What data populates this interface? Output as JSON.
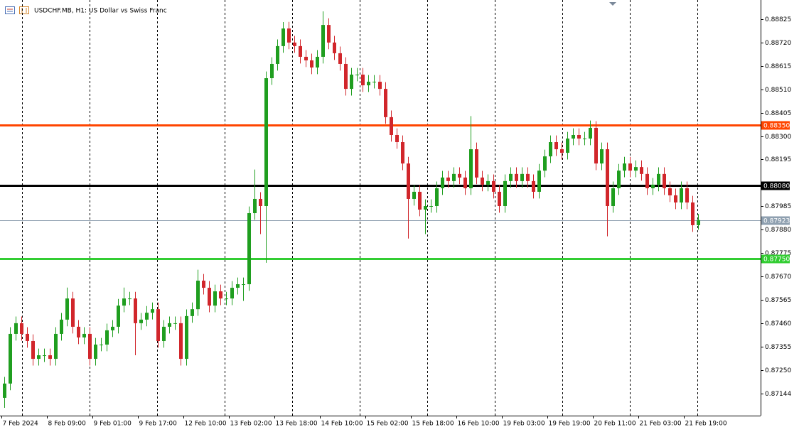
{
  "chart_data": {
    "type": "candlestick",
    "title": "USDCHF.MB, H1: US Dollar vs Swiss Franc",
    "grid": false,
    "up_color": "#1f9e1f",
    "down_color": "#d1262b",
    "xlim": [
      0,
      133.5
    ],
    "ylim": [
      0.87045,
      0.88911
    ],
    "xticks": [
      {
        "value": 0,
        "label": "7 Feb 2024"
      },
      {
        "value": 8,
        "label": "8 Feb 09:00"
      },
      {
        "value": 16,
        "label": "9 Feb 01:00"
      },
      {
        "value": 24,
        "label": "9 Feb 17:00"
      },
      {
        "value": 32,
        "label": "12 Feb 10:00"
      },
      {
        "value": 40,
        "label": "13 Feb 02:00"
      },
      {
        "value": 48,
        "label": "13 Feb 18:00"
      },
      {
        "value": 56,
        "label": "14 Feb 10:00"
      },
      {
        "value": 64,
        "label": "15 Feb 02:00"
      },
      {
        "value": 72,
        "label": "15 Feb 18:00"
      },
      {
        "value": 80,
        "label": "16 Feb 10:00"
      },
      {
        "value": 88,
        "label": "19 Feb 03:00"
      },
      {
        "value": 96,
        "label": "19 Feb 19:00"
      },
      {
        "value": 104,
        "label": "20 Feb 11:00"
      },
      {
        "value": 112,
        "label": "21 Feb 03:00"
      },
      {
        "value": 120,
        "label": "21 Feb 19:00"
      }
    ],
    "xgrid": [
      3.6,
      15.5,
      27.4,
      39.3,
      51.1,
      63,
      74.9,
      86.8,
      98.6,
      110.5,
      122.4
    ],
    "yticks": [
      0.88825,
      {
        "value": 0.8872,
        "label": "0.88720"
      },
      0.88615,
      {
        "value": 0.8851,
        "label": "0.88510"
      },
      0.88405,
      {
        "value": 0.883,
        "label": "0.88300"
      },
      0.88195,
      0.87985,
      {
        "value": 0.8788,
        "label": "0.87880"
      },
      0.87775,
      {
        "value": 0.8767,
        "label": "0.87670"
      },
      0.87565,
      {
        "value": 0.8746,
        "label": "0.87460"
      },
      0.87355,
      {
        "value": 0.8725,
        "label": "0.87250"
      },
      0.87144
    ],
    "levels": [
      {
        "value": 0.8835,
        "label": "0.88350",
        "color": "#ff4500"
      },
      {
        "value": 0.8808,
        "label": "0.88080",
        "color": "#000000"
      },
      {
        "value": 0.8775,
        "label": "0.87750",
        "color": "#32cd32"
      },
      {
        "value": 0.87923,
        "label": "0.87923",
        "color": "#8fa0b0"
      }
    ],
    "open": [
      0.87125,
      0.87189,
      0.87412,
      0.8746,
      0.87412,
      0.8738,
      0.873,
      0.87316,
      0.87316,
      0.873,
      0.87412,
      0.87476,
      0.87571,
      0.87444,
      0.87396,
      0.87412,
      0.873,
      0.87364,
      0.87364,
      0.87428,
      0.87444,
      0.87539,
      0.87571,
      0.87571,
      0.8746,
      0.87476,
      0.87507,
      0.87523,
      0.8738,
      0.87444,
      0.8746,
      0.8746,
      0.873,
      0.87492,
      0.87523,
      0.87651,
      0.87619,
      0.87539,
      0.87603,
      0.87571,
      0.87571,
      0.87619,
      0.87635,
      0.87635,
      0.87954,
      0.88018,
      0.87986,
      0.8856,
      0.88624,
      0.88704,
      0.88783,
      0.8872,
      0.88704,
      0.88656,
      0.8864,
      0.88608,
      0.88656,
      0.88799,
      0.8872,
      0.88672,
      0.88624,
      0.88512,
      0.88576,
      0.88576,
      0.88528,
      0.88544,
      0.88544,
      0.88512,
      0.88385,
      0.88305,
      0.88273,
      0.88177,
      0.88018,
      0.8805,
      0.8797,
      0.87986,
      0.87986,
      0.88066,
      0.88114,
      0.88098,
      0.8813,
      0.88114,
      0.88066,
      0.88241,
      0.88114,
      0.88082,
      0.88098,
      0.8805,
      0.87986,
      0.88098,
      0.8813,
      0.88098,
      0.8813,
      0.88098,
      0.8805,
      0.88145,
      0.88209,
      0.88273,
      0.88241,
      0.88225,
      0.88289,
      0.88305,
      0.88289,
      0.88289,
      0.88337,
      0.88177,
      0.88241,
      0.87986,
      0.88066,
      0.88145,
      0.88177,
      0.88145,
      0.88161,
      0.8813,
      0.88066,
      0.88082,
      0.8813,
      0.88066,
      0.88034,
      0.88002,
      0.88066,
      0.88002,
      0.879
    ],
    "high": [
      0.87219,
      0.87442,
      0.8749,
      0.8749,
      0.87442,
      0.8741,
      0.87346,
      0.87346,
      0.87346,
      0.87442,
      0.87506,
      0.8762,
      0.87601,
      0.87474,
      0.87442,
      0.87442,
      0.87394,
      0.87394,
      0.87458,
      0.87474,
      0.87569,
      0.8762,
      0.87601,
      0.87601,
      0.87506,
      0.87537,
      0.87553,
      0.87553,
      0.87474,
      0.8749,
      0.8749,
      0.8749,
      0.87522,
      0.87553,
      0.877,
      0.87681,
      0.87649,
      0.87633,
      0.87633,
      0.87601,
      0.87649,
      0.87665,
      0.87665,
      0.87984,
      0.8815,
      0.88048,
      0.8859,
      0.88654,
      0.88734,
      0.88812,
      0.88813,
      0.8875,
      0.88734,
      0.88686,
      0.8867,
      0.88686,
      0.8886,
      0.88829,
      0.8875,
      0.88702,
      0.88654,
      0.88606,
      0.88606,
      0.88606,
      0.88574,
      0.88574,
      0.88574,
      0.88542,
      0.88415,
      0.88335,
      0.88303,
      0.88207,
      0.8808,
      0.8808,
      0.88016,
      0.88016,
      0.88096,
      0.88144,
      0.88144,
      0.8816,
      0.8816,
      0.88144,
      0.8839,
      0.88271,
      0.88144,
      0.88128,
      0.88128,
      0.8808,
      0.88128,
      0.8816,
      0.8816,
      0.8816,
      0.8816,
      0.88128,
      0.88175,
      0.88239,
      0.88303,
      0.88303,
      0.88271,
      0.88319,
      0.88335,
      0.88335,
      0.88319,
      0.8837,
      0.88367,
      0.88271,
      0.88271,
      0.88096,
      0.88175,
      0.88207,
      0.88207,
      0.88191,
      0.88191,
      0.8816,
      0.88112,
      0.8816,
      0.8816,
      0.88096,
      0.88064,
      0.88096,
      0.88096,
      0.88032,
      0.8795
    ],
    "low": [
      0.8708,
      0.87159,
      0.87382,
      0.87382,
      0.8735,
      0.8727,
      0.8727,
      0.87286,
      0.8727,
      0.8727,
      0.87382,
      0.87446,
      0.87414,
      0.87366,
      0.87366,
      0.8727,
      0.8727,
      0.87334,
      0.87334,
      0.87398,
      0.87414,
      0.87509,
      0.87541,
      0.87316,
      0.8743,
      0.87446,
      0.87477,
      0.8735,
      0.8735,
      0.87414,
      0.8743,
      0.8727,
      0.8727,
      0.87462,
      0.87493,
      0.87589,
      0.87509,
      0.87509,
      0.87541,
      0.87541,
      0.87541,
      0.87589,
      0.8756,
      0.87605,
      0.87924,
      0.8786,
      0.87731,
      0.8853,
      0.88594,
      0.88674,
      0.8869,
      0.88674,
      0.88626,
      0.8861,
      0.88578,
      0.88578,
      0.88626,
      0.8869,
      0.88642,
      0.88594,
      0.88482,
      0.88482,
      0.88546,
      0.88498,
      0.88498,
      0.88514,
      0.88482,
      0.88355,
      0.88275,
      0.88243,
      0.88147,
      0.8784,
      0.87988,
      0.8794,
      0.8786,
      0.87956,
      0.87956,
      0.88036,
      0.88068,
      0.88068,
      0.88084,
      0.88036,
      0.88036,
      0.88084,
      0.88052,
      0.88052,
      0.8802,
      0.87956,
      0.87956,
      0.88068,
      0.88068,
      0.88068,
      0.88068,
      0.8802,
      0.8802,
      0.88115,
      0.88179,
      0.88211,
      0.88195,
      0.88195,
      0.88259,
      0.88259,
      0.88259,
      0.88259,
      0.88147,
      0.88147,
      0.8785,
      0.87956,
      0.88036,
      0.88115,
      0.88115,
      0.88115,
      0.881,
      0.88036,
      0.88036,
      0.88052,
      0.88036,
      0.88004,
      0.87972,
      0.87972,
      0.87972,
      0.8787,
      0.8788
    ],
    "close": [
      0.87189,
      0.87412,
      0.8746,
      0.87412,
      0.8738,
      0.873,
      0.87316,
      0.87316,
      0.873,
      0.87412,
      0.87476,
      0.87571,
      0.87444,
      0.87396,
      0.87412,
      0.873,
      0.87364,
      0.87364,
      0.87428,
      0.87444,
      0.87539,
      0.87571,
      0.87571,
      0.8746,
      0.87476,
      0.87507,
      0.87523,
      0.8738,
      0.87444,
      0.8746,
      0.8746,
      0.873,
      0.87492,
      0.87523,
      0.87651,
      0.87619,
      0.87539,
      0.87603,
      0.87571,
      0.87571,
      0.87619,
      0.87635,
      0.87635,
      0.87954,
      0.88018,
      0.87986,
      0.8856,
      0.88624,
      0.88704,
      0.88783,
      0.8872,
      0.88704,
      0.88656,
      0.8864,
      0.88608,
      0.88656,
      0.88799,
      0.8872,
      0.88672,
      0.88624,
      0.88512,
      0.88576,
      0.88576,
      0.88528,
      0.88544,
      0.88544,
      0.88512,
      0.88385,
      0.88305,
      0.88273,
      0.88177,
      0.88018,
      0.8805,
      0.8797,
      0.87986,
      0.87986,
      0.88066,
      0.88114,
      0.88098,
      0.8813,
      0.88114,
      0.88066,
      0.88241,
      0.88114,
      0.88082,
      0.88098,
      0.8805,
      0.87986,
      0.88098,
      0.8813,
      0.88098,
      0.8813,
      0.88098,
      0.8805,
      0.88145,
      0.88209,
      0.88273,
      0.88241,
      0.88225,
      0.88289,
      0.88305,
      0.88289,
      0.88289,
      0.88337,
      0.88177,
      0.88241,
      0.87986,
      0.88066,
      0.88145,
      0.88177,
      0.88145,
      0.88161,
      0.8813,
      0.88066,
      0.88082,
      0.8813,
      0.88066,
      0.88034,
      0.88002,
      0.88066,
      0.88002,
      0.879,
      0.87923
    ]
  }
}
